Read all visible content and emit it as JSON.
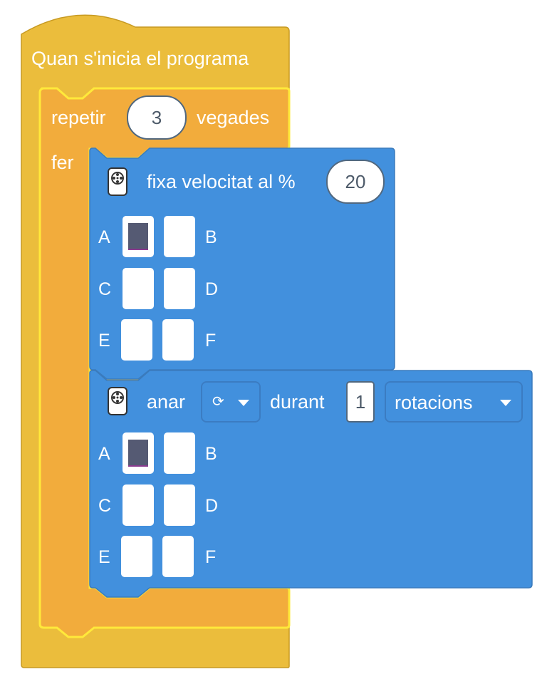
{
  "hat_block": {
    "label": "Quan s'inicia el programa",
    "color": "#ebbd3c"
  },
  "repeat_block": {
    "label_before": "repetir",
    "count": "3",
    "label_after": "vegades",
    "do_label": "fer",
    "color": "#f2ac3c",
    "highlight": "#ffe93a"
  },
  "speed_block": {
    "icon": "motor-icon",
    "label": "fixa velocitat al %",
    "value": "20",
    "color": "#4290dd",
    "ports": [
      {
        "letter": "A",
        "selected": true
      },
      {
        "letter": "B",
        "selected": false
      },
      {
        "letter": "C",
        "selected": false
      },
      {
        "letter": "D",
        "selected": false
      },
      {
        "letter": "E",
        "selected": false
      },
      {
        "letter": "F",
        "selected": false
      }
    ]
  },
  "run_block": {
    "icon": "motor-icon",
    "label": "anar",
    "direction_value": "⟳",
    "duration_label": "durant",
    "duration_value": "1",
    "unit_value": "rotacions",
    "color": "#4290dd",
    "ports": [
      {
        "letter": "A",
        "selected": true
      },
      {
        "letter": "B",
        "selected": false
      },
      {
        "letter": "C",
        "selected": false
      },
      {
        "letter": "D",
        "selected": false
      },
      {
        "letter": "E",
        "selected": false
      },
      {
        "letter": "F",
        "selected": false
      }
    ]
  }
}
